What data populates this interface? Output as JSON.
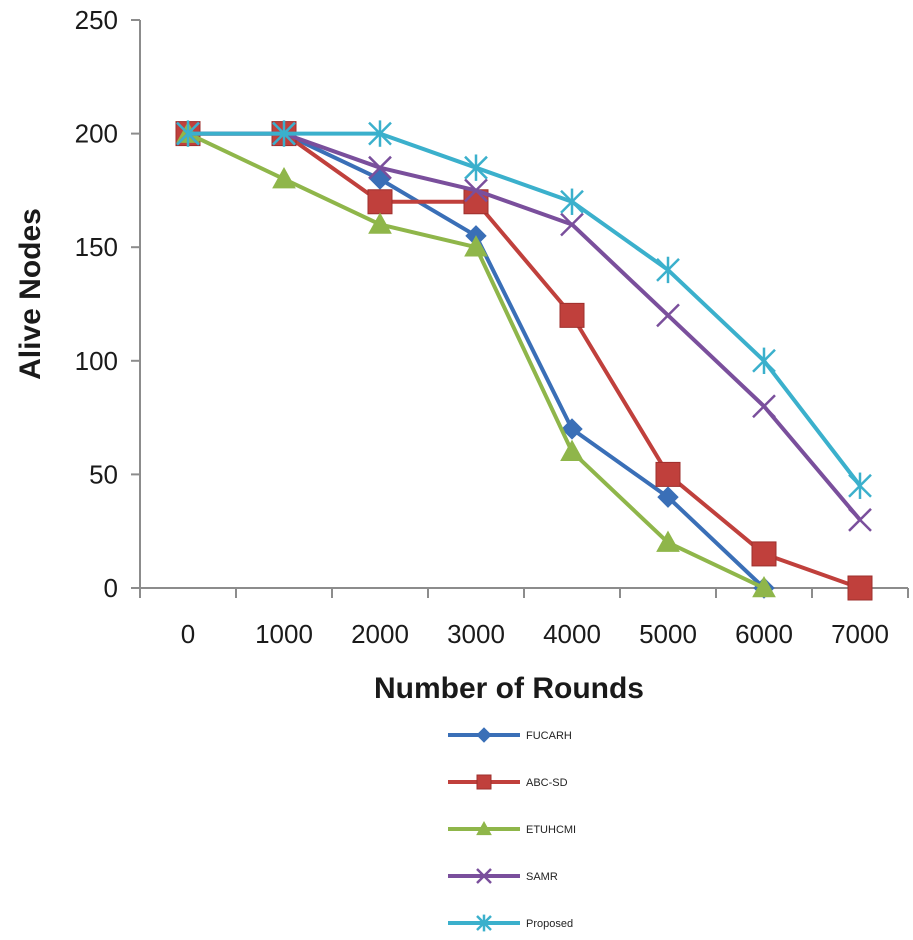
{
  "chart_data": {
    "type": "line",
    "title": "",
    "xlabel": "Number of Rounds",
    "ylabel": "Alive Nodes",
    "categories": [
      "0",
      "1000",
      "2000",
      "3000",
      "4000",
      "5000",
      "6000",
      "7000"
    ],
    "ylim": [
      0,
      250
    ],
    "yticks": [
      "0",
      "50",
      "100",
      "150",
      "200",
      "250"
    ],
    "grid": false,
    "legend_position": "bottom",
    "series": [
      {
        "name": "FUCARH",
        "color": "#3a6fb7",
        "marker": "diamond",
        "values": [
          200,
          200,
          180,
          155,
          70,
          40,
          0,
          null
        ]
      },
      {
        "name": "ABC-SD",
        "color": "#c0403c",
        "marker": "square",
        "values": [
          200,
          200,
          170,
          170,
          120,
          50,
          15,
          0
        ]
      },
      {
        "name": "ETUHCMI",
        "color": "#8fb64a",
        "marker": "triangle",
        "values": [
          200,
          180,
          160,
          150,
          60,
          20,
          0,
          null
        ]
      },
      {
        "name": "SAMR",
        "color": "#7a4f9c",
        "marker": "x",
        "values": [
          200,
          200,
          185,
          175,
          160,
          120,
          80,
          30
        ]
      },
      {
        "name": "Proposed",
        "color": "#3bb0cc",
        "marker": "star",
        "values": [
          200,
          200,
          200,
          185,
          170,
          140,
          100,
          45
        ]
      }
    ]
  }
}
